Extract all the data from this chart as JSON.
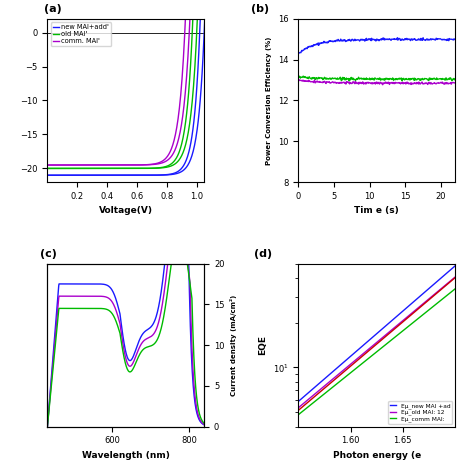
{
  "panel_a": {
    "label": "(a)",
    "xlabel": "Voltage(V)",
    "xlim": [
      0.0,
      1.05
    ],
    "ylim": [
      -22,
      2
    ],
    "yticks": [
      -20,
      -15,
      -10,
      -5,
      0
    ],
    "xticks": [
      0.2,
      0.4,
      0.6,
      0.8,
      1.0
    ],
    "legend": [
      "new MAI+add'",
      "old MAI'",
      "comm. MAI'"
    ],
    "colors_fwd": [
      "#1111cc",
      "#2222dd",
      "#3333ee"
    ],
    "colors_rev": [
      "#2200aa",
      "#00aa00",
      "#9900bb"
    ],
    "blue": "#1a1aff",
    "green": "#00bb00",
    "purple": "#aa00cc"
  },
  "panel_b": {
    "label": "(b)",
    "xlabel": "Tim e (s)",
    "ylabel": "Power Conversion Efficiency (%)",
    "xlim": [
      0,
      22
    ],
    "ylim": [
      8,
      16
    ],
    "yticks": [
      8,
      10,
      12,
      14,
      16
    ],
    "xticks": [
      0,
      5,
      10,
      15,
      20
    ],
    "blue": "#1a1aff",
    "green": "#00bb00",
    "purple": "#aa00cc"
  },
  "panel_c": {
    "label": "(c)",
    "xlabel": "Wavelength (nm)",
    "ylabel_right": "Current density (mA/cm²)",
    "xlim": [
      430,
      840
    ],
    "ylim": [
      0,
      20
    ],
    "yticks": [
      0,
      5,
      10,
      15,
      20
    ],
    "xticks": [
      600,
      800
    ],
    "blue": "#1a1aff",
    "green": "#00bb00",
    "purple": "#aa00cc"
  },
  "panel_d": {
    "label": "(d)",
    "xlabel": "Photon energy (e",
    "ylabel": "EQE",
    "xlim": [
      1.55,
      1.7
    ],
    "ylim": [
      4,
      50
    ],
    "xticks": [
      1.6,
      1.65
    ],
    "legend": [
      "Eμ_new MAI +ad",
      "Eμ_old MAI: 12",
      "Eμ_comm MAI:"
    ],
    "blue": "#1a1aff",
    "green": "#00bb00",
    "purple": "#aa00cc",
    "red": "#cc0000"
  }
}
